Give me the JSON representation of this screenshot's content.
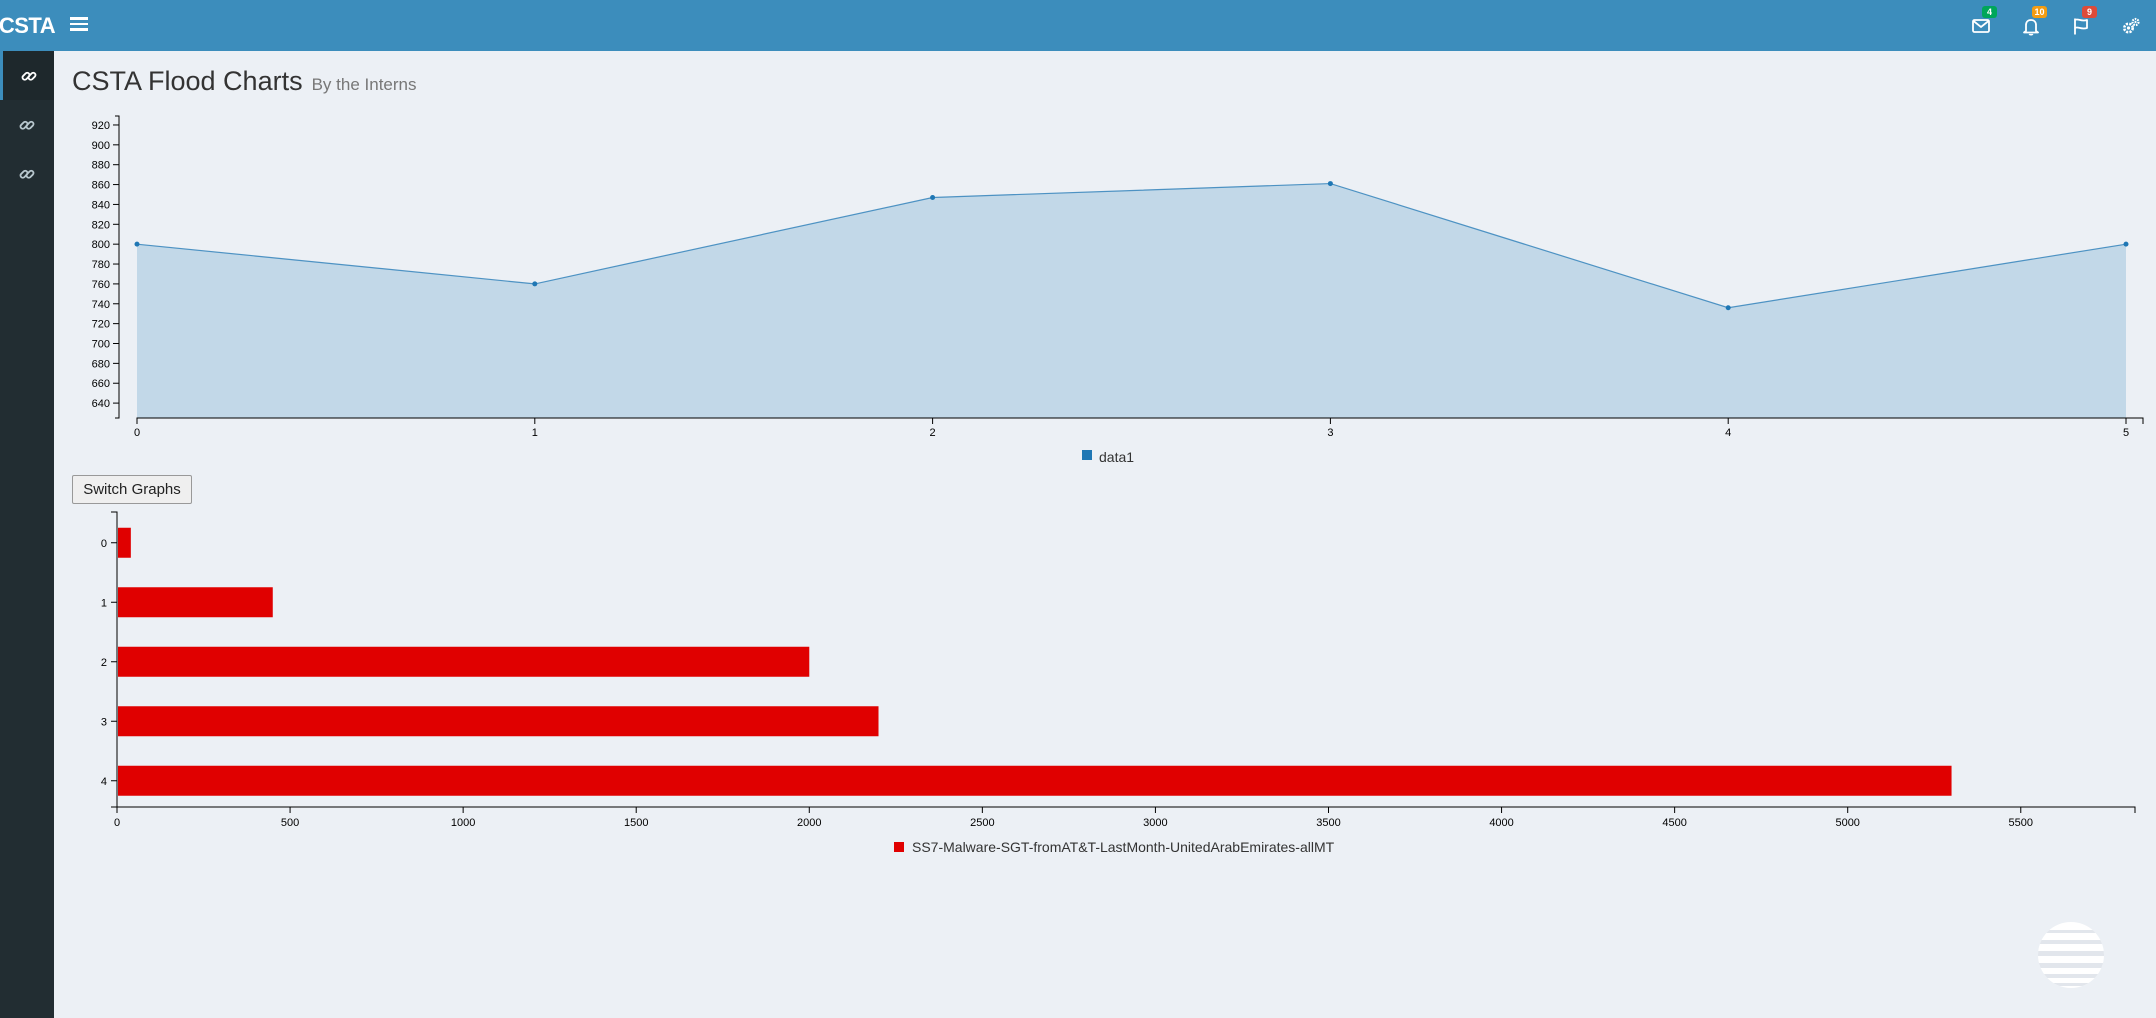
{
  "app": {
    "brand": "CSTA"
  },
  "header": {
    "title": "CSTA Flood Charts",
    "subtitle": "By the Interns",
    "notifications": [
      {
        "icon": "envelope-icon",
        "count": "4",
        "color": "#00a65a"
      },
      {
        "icon": "bell-icon",
        "count": "10",
        "color": "#f39c12"
      },
      {
        "icon": "flag-icon",
        "count": "9",
        "color": "#dd4b39"
      },
      {
        "icon": "gears-icon",
        "count": "",
        "color": ""
      }
    ]
  },
  "sidebar": {
    "items": [
      {
        "icon": "link-icon"
      },
      {
        "icon": "link-icon"
      },
      {
        "icon": "link-icon"
      }
    ]
  },
  "switch_button": {
    "label": "Switch Graphs"
  },
  "chart_data": [
    {
      "type": "area",
      "x": [
        0,
        1,
        2,
        3,
        4,
        5
      ],
      "series": [
        {
          "name": "data1",
          "values": [
            800,
            760,
            847,
            861,
            736,
            800
          ],
          "color": "#1f77b4"
        }
      ],
      "ylim": [
        625,
        925
      ],
      "yticks": [
        640,
        660,
        680,
        700,
        720,
        740,
        760,
        780,
        800,
        820,
        840,
        860,
        880,
        900,
        920
      ],
      "xticks": [
        0,
        1,
        2,
        3,
        4,
        5
      ],
      "legend": "bottom-center"
    },
    {
      "type": "bar",
      "orientation": "horizontal",
      "categories": [
        "0",
        "1",
        "2",
        "3",
        "4"
      ],
      "series": [
        {
          "name": "SS7-Malware-SGT-fromAT&T-LastMonth-UnitedArabEmirates-allMT",
          "values": [
            40,
            450,
            2000,
            2200,
            5300
          ],
          "color": "#e00000"
        }
      ],
      "xlim": [
        0,
        5830
      ],
      "xticks": [
        0,
        500,
        1000,
        1500,
        2000,
        2500,
        3000,
        3500,
        4000,
        4500,
        5000,
        5500
      ],
      "legend": "bottom-center"
    }
  ]
}
